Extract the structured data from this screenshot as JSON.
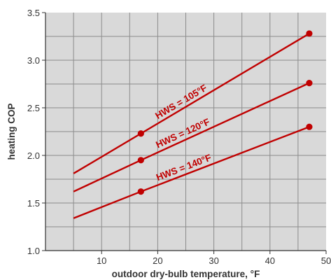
{
  "chart_data": {
    "type": "line",
    "xlabel": "outdoor dry-bulb temperature, °F",
    "ylabel": "heating COP",
    "xlim": [
      0,
      50
    ],
    "ylim": [
      1.0,
      3.5
    ],
    "x_ticks": [
      "10",
      "20",
      "30",
      "40",
      "50"
    ],
    "x_tick_values": [
      10,
      20,
      30,
      40,
      50
    ],
    "y_ticks": [
      "1.0",
      "1.5",
      "2.0",
      "2.5",
      "3.0",
      "3.5"
    ],
    "y_tick_values": [
      1.0,
      1.5,
      2.0,
      2.5,
      3.0,
      3.5
    ],
    "grid": true,
    "series": [
      {
        "name": "HWS = 105°F",
        "x": [
          5,
          17,
          47
        ],
        "y": [
          1.81,
          2.23,
          3.28
        ],
        "markers_at": [
          17,
          47
        ]
      },
      {
        "name": "HWS = 120°F",
        "x": [
          5,
          17,
          47
        ],
        "y": [
          1.62,
          1.95,
          2.76
        ],
        "markers_at": [
          17,
          47
        ]
      },
      {
        "name": "HWS = 140°F",
        "x": [
          5,
          17,
          47
        ],
        "y": [
          1.34,
          1.62,
          2.3
        ],
        "markers_at": [
          17,
          47
        ]
      }
    ],
    "colors": {
      "line": "#c00000",
      "plot_bg": "#d9d9d9",
      "grid": "#8c8c8c",
      "axis": "#333333"
    }
  }
}
